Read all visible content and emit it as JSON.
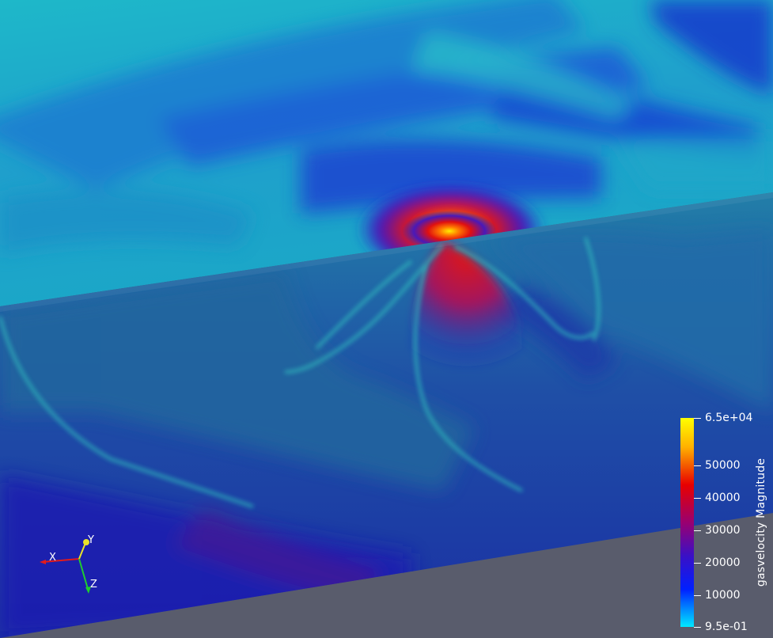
{
  "view": {
    "colors": {
      "background_floor": "#5a5d6e",
      "upper_field_base": "#19a6c4",
      "lower_field_base": "#1c3e9c",
      "hotspot_core": "#ffee00",
      "hotspot_mid": "#e8120a",
      "deep_blue": "#1717c2"
    }
  },
  "colorbar": {
    "title": "gasvelocity Magnitude",
    "ticks": [
      "6.5e+04",
      "50000",
      "40000",
      "30000",
      "20000",
      "10000",
      "9.5e-01"
    ],
    "gradient_stops": [
      "#ffff00",
      "#ff9a00",
      "#e80000",
      "#a0006a",
      "#4a10c0",
      "#0014ff",
      "#0090ff",
      "#00e6ff"
    ],
    "range": [
      0.95,
      65000
    ]
  },
  "axes": {
    "x_label": "X",
    "y_label": "Y",
    "z_label": "Z",
    "x_color": "#e21b1b",
    "y_color": "#e9e32a",
    "z_color": "#1fcc2e"
  }
}
